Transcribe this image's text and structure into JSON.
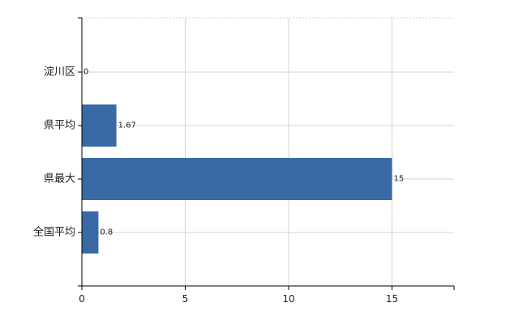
{
  "chart_data": {
    "type": "bar",
    "orientation": "horizontal",
    "categories": [
      "淀川区",
      "県平均",
      "県最大",
      "全国平均"
    ],
    "values": [
      0,
      1.67,
      15,
      0.8
    ],
    "data_labels": [
      "0",
      "1.67",
      "15",
      "0.8"
    ],
    "xlim": [
      0,
      18
    ],
    "x_ticks": [
      0,
      5,
      10,
      15
    ],
    "x_tick_labels": [
      "0",
      "5",
      "10",
      "15"
    ],
    "grid": true,
    "bar_color": "#3a6aa6"
  }
}
